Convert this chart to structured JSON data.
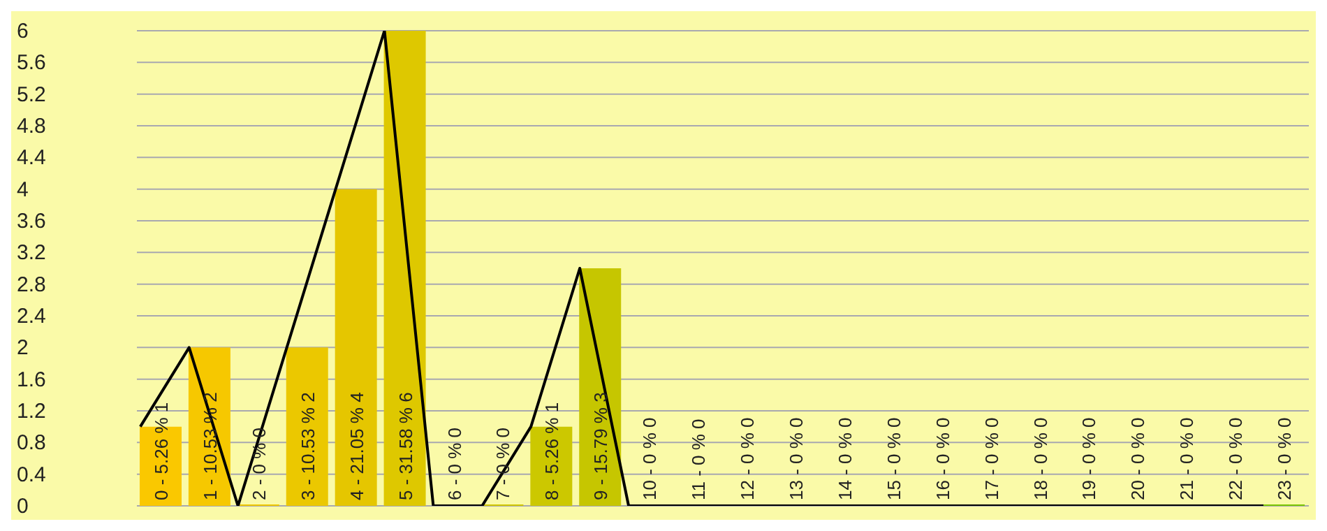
{
  "chart_data": {
    "type": "bar",
    "categories": [
      null,
      null,
      null,
      null,
      null,
      null,
      null,
      null,
      null,
      null,
      null,
      null,
      null,
      null,
      null,
      null,
      null,
      null,
      null,
      null,
      null,
      null,
      null,
      null
    ],
    "series": [
      {
        "type": "bar",
        "values": [
          1,
          2,
          0,
          2,
          4,
          6,
          0,
          0,
          1,
          3,
          0,
          0,
          0,
          0,
          0,
          0,
          0,
          0,
          0,
          0,
          0,
          0,
          0,
          0
        ],
        "colors": [
          "#fac800",
          "#f6c800",
          "#f0c800",
          "#ebc800",
          "#e5c600",
          "#dec800",
          "#d8c800",
          "#d2c800",
          "#ccc800",
          "#c6c600",
          "#c0c800",
          "#bac800",
          "#b4c800",
          "#aec800",
          "#a8c800",
          "#a2c800",
          "#9cc800",
          "#96c800",
          "#90c800",
          "#8ac800",
          "#86c800",
          "#83c800",
          "#80c800",
          "#7cc800"
        ],
        "value_labels": [
          "0 - 5.26 % 1",
          "1 - 10.53 % 2",
          "2 - 0 % 0",
          "3 - 10.53 % 2",
          "4 - 21.05 % 4",
          "5 - 31.58 % 6",
          "6 - 0 % 0",
          "7 - 0 % 0",
          "8 - 5.26 % 1",
          "9 - 15.79 % 3",
          "10 - 0 % 0",
          "11 - 0 % 0",
          "12 - 0 % 0",
          "13 - 0 % 0",
          "14 - 0 % 0",
          "15 - 0 % 0",
          "16 - 0 % 0",
          "17 - 0 % 0",
          "18 - 0 % 0",
          "19 - 0 % 0",
          "20 - 0 % 0",
          "21 - 0 % 0",
          "22 - 0 % 0",
          "23 - 0 % 0"
        ]
      },
      {
        "type": "line",
        "color": "#000000",
        "values": [
          1,
          2,
          0,
          2,
          4,
          6,
          0,
          0,
          1,
          3,
          0,
          0,
          0,
          0,
          0,
          0,
          0,
          0,
          0,
          0,
          0,
          0,
          0,
          0
        ]
      }
    ],
    "ylim": [
      0,
      6
    ],
    "yticks": [
      0,
      0.4,
      0.8,
      1.2,
      1.6,
      2,
      2.4,
      2.8,
      3.2,
      3.6,
      4,
      4.4,
      4.8,
      5.2,
      5.6,
      6
    ],
    "grid": "y",
    "tick_labels": "y",
    "marker": "none"
  }
}
